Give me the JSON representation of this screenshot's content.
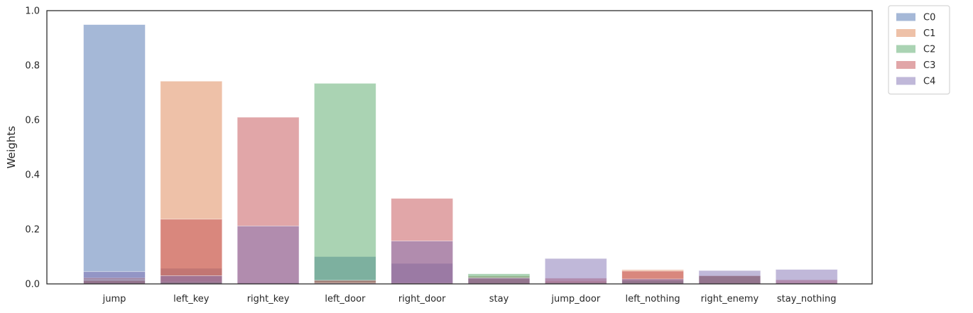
{
  "chart_data": {
    "type": "bar",
    "overlay": true,
    "title": "",
    "xlabel": "",
    "ylabel": "Weights",
    "ylim": [
      0,
      1.0
    ],
    "yticks": [
      "0.0",
      "0.2",
      "0.4",
      "0.6",
      "0.8",
      "1.0"
    ],
    "grid": false,
    "legend_position": "outside-top-right",
    "bar_opacity": 0.5,
    "categories": [
      "jump",
      "left_key",
      "right_key",
      "left_door",
      "right_door",
      "stay",
      "jump_door",
      "left_nothing",
      "right_enemy",
      "stay_nothing"
    ],
    "series": [
      {
        "name": "C0",
        "color": "#4c72b0",
        "values": [
          0.949,
          0.057,
          0.005,
          0.1,
          0.075,
          0.028,
          0.003,
          0.018,
          0.028,
          0.003
        ]
      },
      {
        "name": "C1",
        "color": "#dd8452",
        "values": [
          0.022,
          0.742,
          0.003,
          0.005,
          0.002,
          0.028,
          0.01,
          0.052,
          0.03,
          0.003
        ]
      },
      {
        "name": "C2",
        "color": "#55a868",
        "values": [
          0.015,
          0.008,
          0.003,
          0.734,
          0.004,
          0.037,
          0.005,
          0.012,
          0.03,
          0.003
        ]
      },
      {
        "name": "C3",
        "color": "#c44e52",
        "values": [
          0.013,
          0.237,
          0.61,
          0.013,
          0.313,
          0.021,
          0.021,
          0.047,
          0.03,
          0.015
        ]
      },
      {
        "name": "C4",
        "color": "#8172b3",
        "values": [
          0.045,
          0.03,
          0.212,
          0.003,
          0.157,
          0.022,
          0.093,
          0.018,
          0.049,
          0.053
        ]
      }
    ]
  }
}
